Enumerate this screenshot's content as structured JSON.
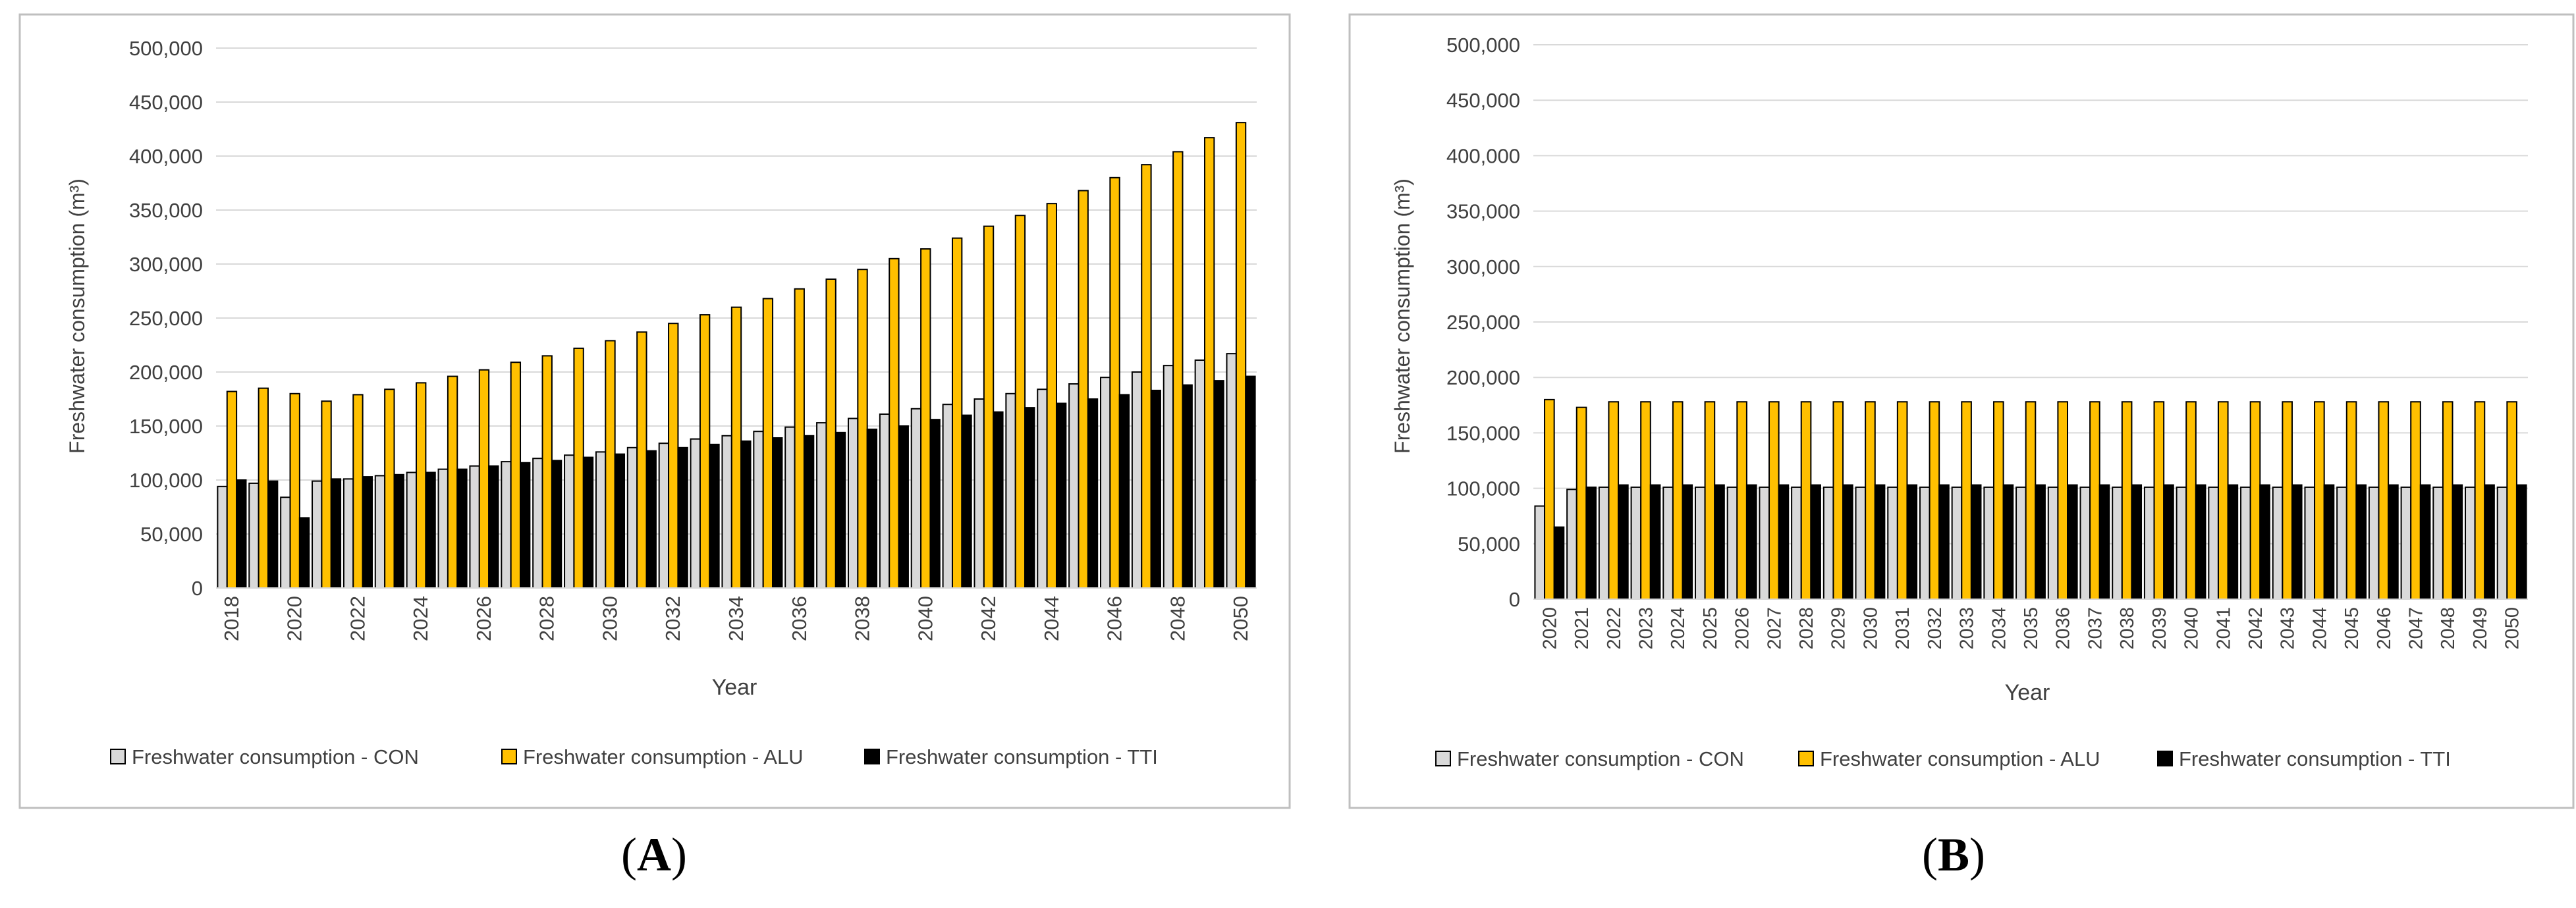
{
  "colors": {
    "con_fill": "#d9d9d9",
    "alu_fill": "#ffc000",
    "tti_fill": "#000000",
    "bar_stroke": "#000000",
    "grid": "#d9d9d9",
    "panel_border": "#bfbfbf",
    "text": "#404040"
  },
  "panels": [
    {
      "label_open": "(",
      "label": "A",
      "label_close": ")",
      "legend": [
        "Freshwater consumption - CON",
        "Freshwater consumption - ALU",
        "Freshwater consumption - TTI"
      ]
    },
    {
      "label_open": "(",
      "label": "B",
      "label_close": ")",
      "legend": [
        "Freshwater consumption - CON",
        "Freshwater consumption - ALU",
        "Freshwater consumption - TTI"
      ]
    }
  ],
  "chart_data": [
    {
      "type": "bar",
      "title": "",
      "xlabel": "Year",
      "ylabel": "Freshwater consumption (m³)",
      "ylim": [
        0,
        500000
      ],
      "yticks": [
        0,
        50000,
        100000,
        150000,
        200000,
        250000,
        300000,
        350000,
        400000,
        450000,
        500000
      ],
      "ytick_labels": [
        "0",
        "50,000",
        "100,000",
        "150,000",
        "200,000",
        "250,000",
        "300,000",
        "350,000",
        "400,000",
        "450,000",
        "500,000"
      ],
      "grid": true,
      "legend_position": "bottom",
      "categories": [
        "2018",
        "2019",
        "2020",
        "2021",
        "2022",
        "2023",
        "2024",
        "2025",
        "2026",
        "2027",
        "2028",
        "2029",
        "2030",
        "2031",
        "2032",
        "2033",
        "2034",
        "2035",
        "2036",
        "2037",
        "2038",
        "2039",
        "2040",
        "2041",
        "2042",
        "2043",
        "2044",
        "2045",
        "2046",
        "2047",
        "2048",
        "2049",
        "2050"
      ],
      "x_tick_labels": [
        "2018",
        "",
        "2020",
        "",
        "2022",
        "",
        "2024",
        "",
        "2026",
        "",
        "2028",
        "",
        "2030",
        "",
        "2032",
        "",
        "2034",
        "",
        "2036",
        "",
        "2038",
        "",
        "2040",
        "",
        "2042",
        "",
        "2044",
        "",
        "2046",
        "",
        "2048",
        "",
        "2050"
      ],
      "series": [
        {
          "name": "Freshwater consumption - CON",
          "values": [
            94000,
            97000,
            84000,
            99000,
            101000,
            104000,
            107000,
            110000,
            113000,
            117000,
            120000,
            123000,
            126000,
            130000,
            134000,
            138000,
            141000,
            145000,
            149000,
            153000,
            157000,
            161000,
            166000,
            170000,
            175000,
            180000,
            184000,
            189000,
            195000,
            200000,
            206000,
            211000,
            217000
          ]
        },
        {
          "name": "Freshwater consumption - ALU",
          "values": [
            182000,
            185000,
            180000,
            173000,
            179000,
            184000,
            190000,
            196000,
            202000,
            209000,
            215000,
            222000,
            229000,
            237000,
            245000,
            253000,
            260000,
            268000,
            277000,
            286000,
            295000,
            305000,
            314000,
            324000,
            335000,
            345000,
            356000,
            368000,
            380000,
            392000,
            404000,
            417000,
            431000
          ]
        },
        {
          "name": "Freshwater consumption - TTI",
          "values": [
            100000,
            99000,
            65000,
            101000,
            103000,
            105000,
            107000,
            110000,
            113000,
            116000,
            118000,
            121000,
            124000,
            127000,
            130000,
            133000,
            136000,
            139000,
            141000,
            144000,
            147000,
            150000,
            156000,
            160000,
            163000,
            167000,
            171000,
            175000,
            179000,
            183000,
            188000,
            192000,
            196000
          ]
        }
      ]
    },
    {
      "type": "bar",
      "title": "",
      "xlabel": "Year",
      "ylabel": "Freshwater consumption (m³)",
      "ylim": [
        0,
        500000
      ],
      "yticks": [
        0,
        50000,
        100000,
        150000,
        200000,
        250000,
        300000,
        350000,
        400000,
        450000,
        500000
      ],
      "ytick_labels": [
        "0",
        "50,000",
        "100,000",
        "150,000",
        "200,000",
        "250,000",
        "300,000",
        "350,000",
        "400,000",
        "450,000",
        "500,000"
      ],
      "grid": true,
      "legend_position": "bottom",
      "categories": [
        "2020",
        "2021",
        "2022",
        "2023",
        "2024",
        "2025",
        "2026",
        "2027",
        "2028",
        "2029",
        "2030",
        "2031",
        "2032",
        "2033",
        "2034",
        "2035",
        "2036",
        "2037",
        "2038",
        "2039",
        "2040",
        "2041",
        "2042",
        "2043",
        "2044",
        "2045",
        "2046",
        "2047",
        "2048",
        "2049",
        "2050"
      ],
      "x_tick_labels": [
        "2020",
        "2021",
        "2022",
        "2023",
        "2024",
        "2025",
        "2026",
        "2027",
        "2028",
        "2029",
        "2030",
        "2031",
        "2032",
        "2033",
        "2034",
        "2035",
        "2036",
        "2037",
        "2038",
        "2039",
        "2040",
        "2041",
        "2042",
        "2043",
        "2044",
        "2045",
        "2046",
        "2047",
        "2048",
        "2049",
        "2050"
      ],
      "series": [
        {
          "name": "Freshwater consumption - CON",
          "values": [
            84000,
            99000,
            101000,
            101000,
            101000,
            101000,
            101000,
            101000,
            101000,
            101000,
            101000,
            101000,
            101000,
            101000,
            101000,
            101000,
            101000,
            101000,
            101000,
            101000,
            101000,
            101000,
            101000,
            101000,
            101000,
            101000,
            101000,
            101000,
            101000,
            101000,
            101000
          ]
        },
        {
          "name": "Freshwater consumption - ALU",
          "values": [
            180000,
            173000,
            178000,
            178000,
            178000,
            178000,
            178000,
            178000,
            178000,
            178000,
            178000,
            178000,
            178000,
            178000,
            178000,
            178000,
            178000,
            178000,
            178000,
            178000,
            178000,
            178000,
            178000,
            178000,
            178000,
            178000,
            178000,
            178000,
            178000,
            178000,
            178000
          ]
        },
        {
          "name": "Freshwater consumption - TTI",
          "values": [
            65000,
            101000,
            103000,
            103000,
            103000,
            103000,
            103000,
            103000,
            103000,
            103000,
            103000,
            103000,
            103000,
            103000,
            103000,
            103000,
            103000,
            103000,
            103000,
            103000,
            103000,
            103000,
            103000,
            103000,
            103000,
            103000,
            103000,
            103000,
            103000,
            103000,
            103000
          ]
        }
      ]
    }
  ]
}
